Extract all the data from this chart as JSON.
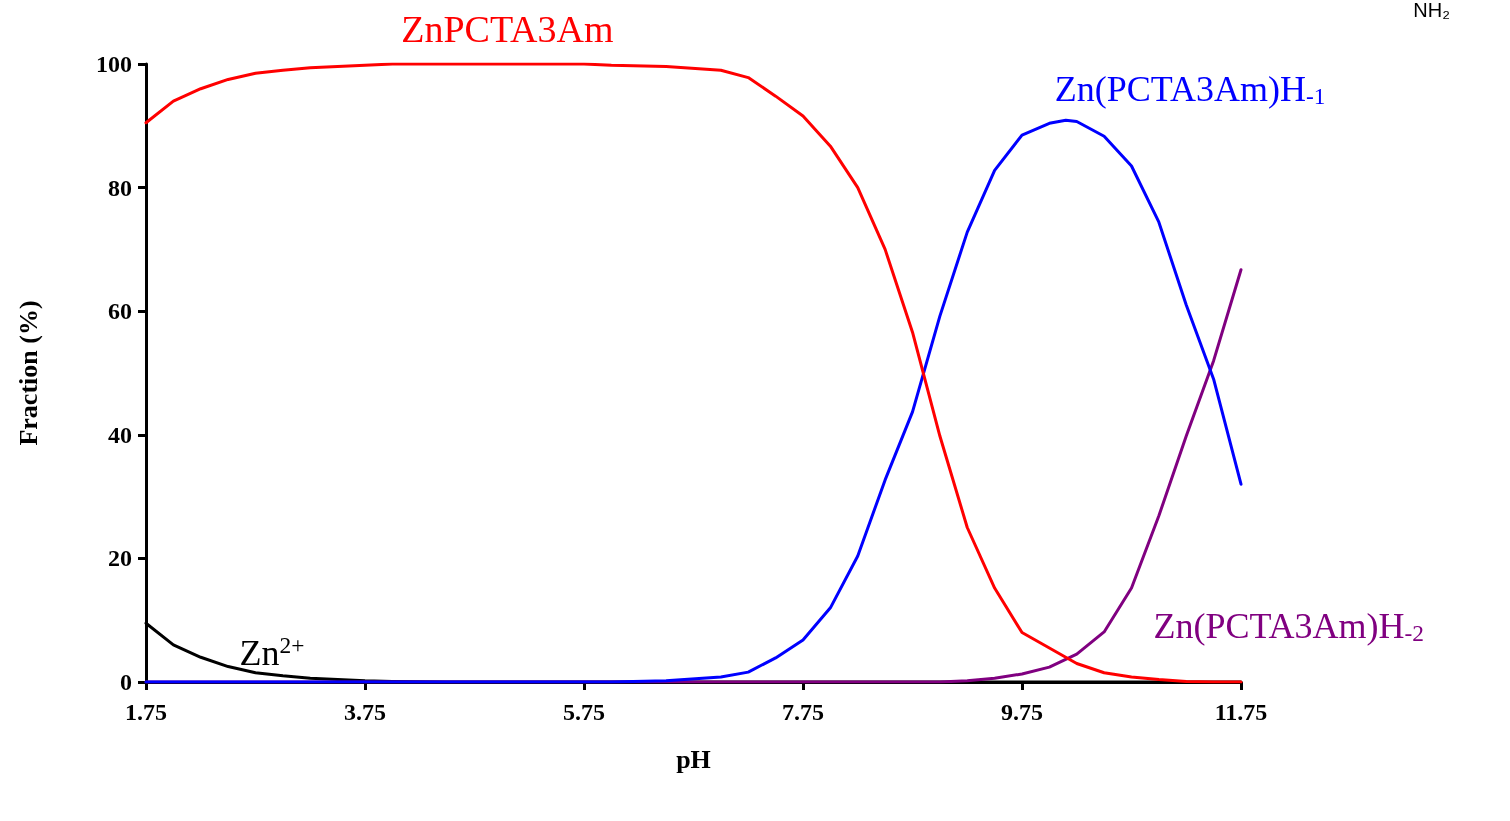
{
  "chart_data": {
    "type": "line",
    "xlabel": "pH",
    "ylabel": "Fraction (%)",
    "xlim": [
      1.75,
      11.75
    ],
    "xticks": [
      1.75,
      3.75,
      5.75,
      7.75,
      9.75,
      11.75
    ],
    "ylim": [
      0,
      100
    ],
    "yticks": [
      0,
      20,
      40,
      60,
      80,
      100
    ],
    "grid": false,
    "legend": false,
    "marker": "none",
    "line_style": "solid",
    "annotations": [
      "NH₂"
    ],
    "series": [
      {
        "name": "ZnPCTA3Am",
        "color": "#ff0000",
        "x": [
          1.75,
          2.0,
          2.25,
          2.5,
          2.75,
          3.0,
          3.25,
          3.5,
          3.75,
          4.0,
          5.75,
          6.0,
          6.5,
          7.0,
          7.25,
          7.5,
          7.75,
          8.0,
          8.25,
          8.5,
          8.75,
          9.0,
          9.25,
          9.5,
          9.75,
          10.0,
          10.25,
          10.5,
          10.75,
          11.0,
          11.25,
          11.5,
          11.75
        ],
        "values": [
          90.5,
          94,
          96,
          97.5,
          98.5,
          99,
          99.4,
          99.6,
          99.8,
          100,
          100,
          99.8,
          99.6,
          99,
          97.8,
          94.8,
          91.6,
          86.7,
          80,
          70,
          56.6,
          39.8,
          25,
          15.2,
          8,
          5.5,
          3,
          1.5,
          0.8,
          0.4,
          0.1,
          0,
          0
        ]
      },
      {
        "name": "Zn(PCTA3Am)H$_{-1}$",
        "color": "#0000ff",
        "x": [
          1.75,
          6.0,
          6.5,
          7.0,
          7.25,
          7.5,
          7.75,
          8.0,
          8.25,
          8.5,
          8.75,
          9.0,
          9.25,
          9.5,
          9.75,
          10.0,
          10.15,
          10.25,
          10.5,
          10.75,
          11.0,
          11.25,
          11.5,
          11.75
        ],
        "values": [
          0,
          0,
          0.2,
          0.8,
          1.6,
          3.9,
          6.8,
          12,
          20.4,
          32.7,
          43.7,
          59.2,
          72.8,
          82.8,
          88.5,
          90.4,
          90.9,
          90.7,
          88.3,
          83.5,
          74.4,
          61,
          49,
          32
        ]
      },
      {
        "name": "Zn(PCTA3Am)H$_{-2}$",
        "color": "#800080",
        "x": [
          1.75,
          9.0,
          9.25,
          9.5,
          9.75,
          10.0,
          10.25,
          10.5,
          10.75,
          11.0,
          11.25,
          11.5,
          11.75
        ],
        "values": [
          0,
          0,
          0.2,
          0.6,
          1.3,
          2.4,
          4.5,
          8.1,
          15.2,
          26.9,
          39.8,
          52,
          66.7
        ]
      },
      {
        "name": "Zn$^{2+}$",
        "color": "#000000",
        "x": [
          1.75,
          2.0,
          2.25,
          2.5,
          2.75,
          3.0,
          3.25,
          3.5,
          3.75,
          4.0,
          4.5,
          11.75
        ],
        "values": [
          9.5,
          6,
          4,
          2.5,
          1.5,
          1.0,
          0.6,
          0.4,
          0.2,
          0.1,
          0,
          0
        ]
      }
    ]
  }
}
